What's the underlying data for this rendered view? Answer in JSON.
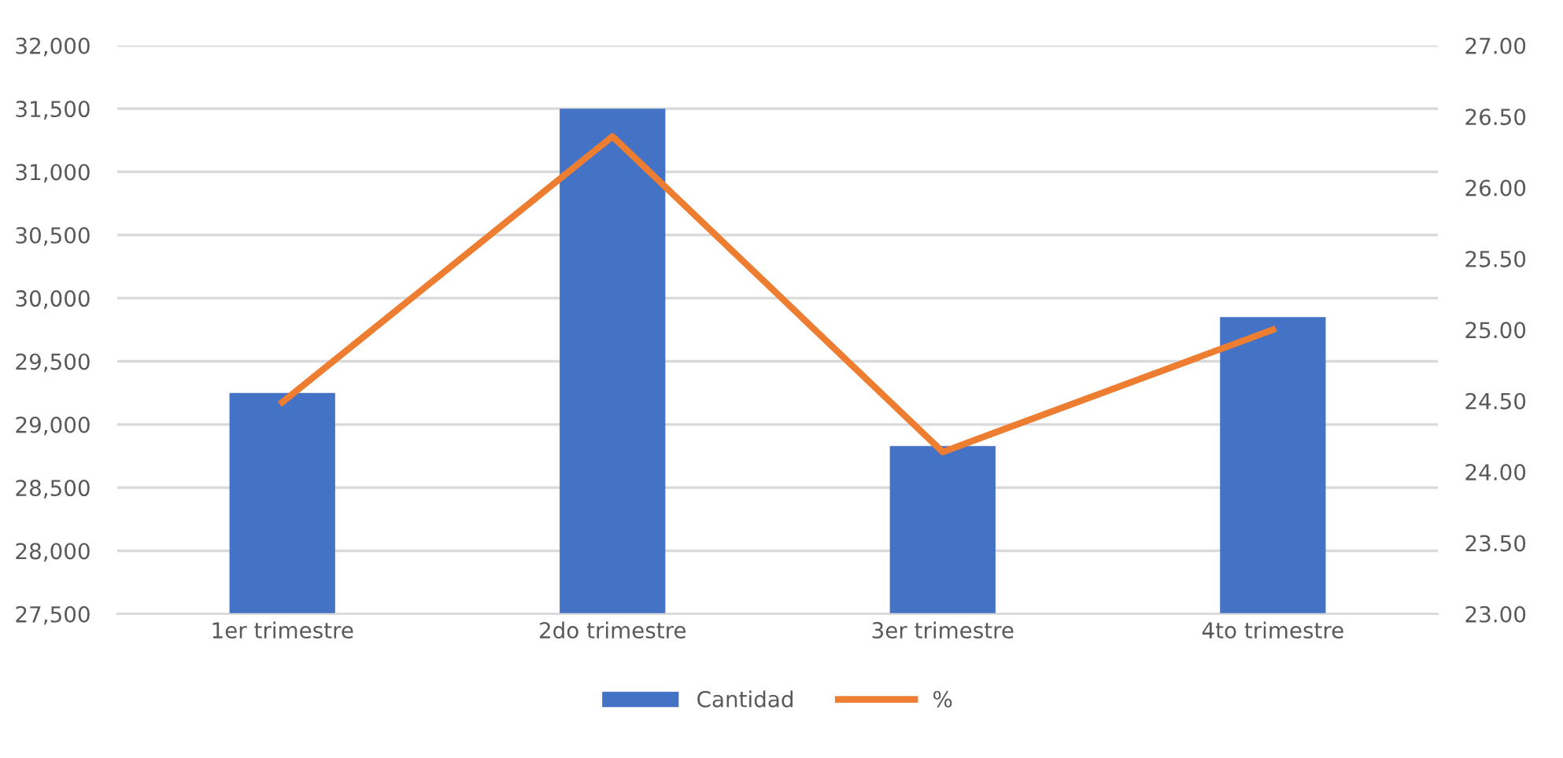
{
  "chart_data": {
    "type": "bar",
    "categories": [
      "1er trimestre",
      "2do trimestre",
      "3er trimestre",
      "4to trimestre"
    ],
    "series": [
      {
        "name": "Cantidad",
        "color": "#4472c4",
        "values": [
          29250,
          31500,
          28830,
          29850
        ]
      },
      {
        "name": "%",
        "type": "line",
        "axis": "y2",
        "color": "#ed7d31",
        "values": [
          24.49,
          26.36,
          24.14,
          25.0
        ]
      }
    ],
    "ylim": [
      27500,
      32000
    ],
    "yticks": [
      {
        "value": 27500,
        "label": "27,500"
      },
      {
        "value": 28000,
        "label": "28,000"
      },
      {
        "value": 28500,
        "label": "28,500"
      },
      {
        "value": 29000,
        "label": "29,000"
      },
      {
        "value": 29500,
        "label": "29,500"
      },
      {
        "value": 30000,
        "label": "30,000"
      },
      {
        "value": 30500,
        "label": "30,500"
      },
      {
        "value": 31000,
        "label": "31,000"
      },
      {
        "value": 31500,
        "label": "31,500"
      },
      {
        "value": 32000,
        "label": "32,000"
      }
    ],
    "y2lim": [
      23,
      27
    ],
    "y2ticks": [
      {
        "value": 23,
        "label": "23.00"
      },
      {
        "value": 23.5,
        "label": "23.50"
      },
      {
        "value": 24,
        "label": "24.00"
      },
      {
        "value": 24.5,
        "label": "24.50"
      },
      {
        "value": 25,
        "label": "25.00"
      },
      {
        "value": 25.5,
        "label": "25.50"
      },
      {
        "value": 26,
        "label": "26.00"
      },
      {
        "value": 26.5,
        "label": "26.50"
      },
      {
        "value": 27,
        "label": "27.00"
      }
    ],
    "grid": "y",
    "legend": "bottom",
    "marker": "none",
    "line_style": "solid"
  }
}
